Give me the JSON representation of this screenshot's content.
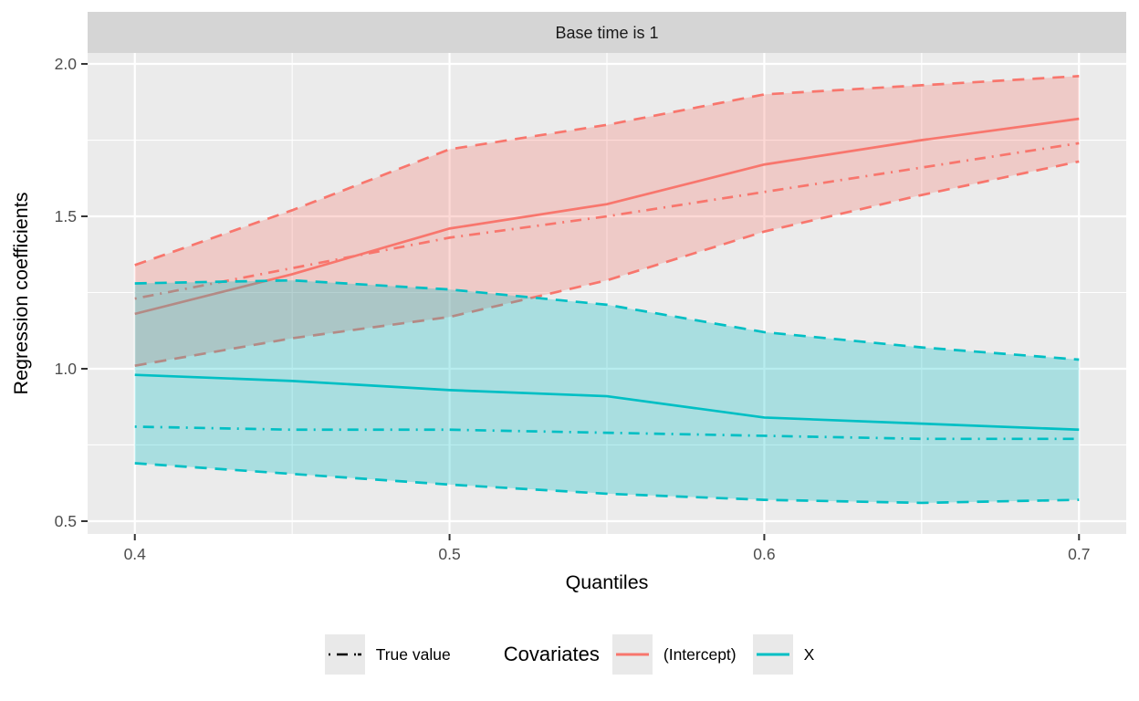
{
  "figure": {
    "strip_title": "Base time is 1",
    "colors": {
      "intercept": "#F8766D",
      "x_series": "#00BFC4",
      "panel_bg": "#EBEBEB",
      "strip_bg": "#D5D5D5",
      "grid": "#FFFFFF",
      "tick_label": "#4D4D4D",
      "axis_title": "#000000",
      "strip_text": "#1A1A1A",
      "true_value_line": "#000000",
      "legend_key_bg": "#E9E9E9"
    }
  },
  "legend": {
    "true_value_label": "True value",
    "covariates_title": "Covariates",
    "items": [
      {
        "label": "(Intercept)"
      },
      {
        "label": "X"
      }
    ]
  },
  "chart_data": {
    "type": "line",
    "title": "Base time is 1",
    "xlabel": "Quantiles",
    "ylabel": "Regression coefficients",
    "legend_position": "bottom",
    "grid": true,
    "x": [
      0.4,
      0.45,
      0.5,
      0.55,
      0.6,
      0.65,
      0.7
    ],
    "x_ticks": [
      {
        "v": 0.4,
        "label": "0.4"
      },
      {
        "v": 0.5,
        "label": "0.5"
      },
      {
        "v": 0.6,
        "label": "0.6"
      },
      {
        "v": 0.7,
        "label": "0.7"
      }
    ],
    "y_ticks": [
      {
        "v": 0.5,
        "label": "0.5"
      },
      {
        "v": 1.0,
        "label": "1.0"
      },
      {
        "v": 1.5,
        "label": "1.5"
      },
      {
        "v": 2.0,
        "label": "2.0"
      }
    ],
    "x_minor_ticks": [
      0.45,
      0.55,
      0.65
    ],
    "y_minor_ticks": [
      0.75,
      1.25,
      1.75
    ],
    "xlim": [
      0.385,
      0.715
    ],
    "ylim": [
      0.458,
      2.036
    ],
    "groups": [
      {
        "name": "(Intercept)",
        "color": "#F8766D",
        "estimate": [
          1.18,
          1.31,
          1.46,
          1.54,
          1.67,
          1.75,
          1.82
        ],
        "true_value": [
          1.23,
          1.33,
          1.43,
          1.5,
          1.58,
          1.66,
          1.74
        ],
        "ci_upper": [
          1.34,
          1.52,
          1.72,
          1.8,
          1.9,
          1.93,
          1.96
        ],
        "ci_lower": [
          1.01,
          1.1,
          1.17,
          1.29,
          1.45,
          1.57,
          1.68
        ]
      },
      {
        "name": "X",
        "color": "#00BFC4",
        "estimate": [
          0.98,
          0.96,
          0.93,
          0.91,
          0.84,
          0.82,
          0.8
        ],
        "true_value": [
          0.81,
          0.8,
          0.8,
          0.79,
          0.78,
          0.77,
          0.77
        ],
        "ci_upper": [
          1.28,
          1.29,
          1.26,
          1.21,
          1.12,
          1.07,
          1.03
        ],
        "ci_lower": [
          0.69,
          0.655,
          0.62,
          0.59,
          0.57,
          0.56,
          0.57
        ]
      }
    ],
    "line_styles": {
      "estimate": "solid",
      "true_value": "dash-dot",
      "ci_bounds": "dashed"
    }
  }
}
